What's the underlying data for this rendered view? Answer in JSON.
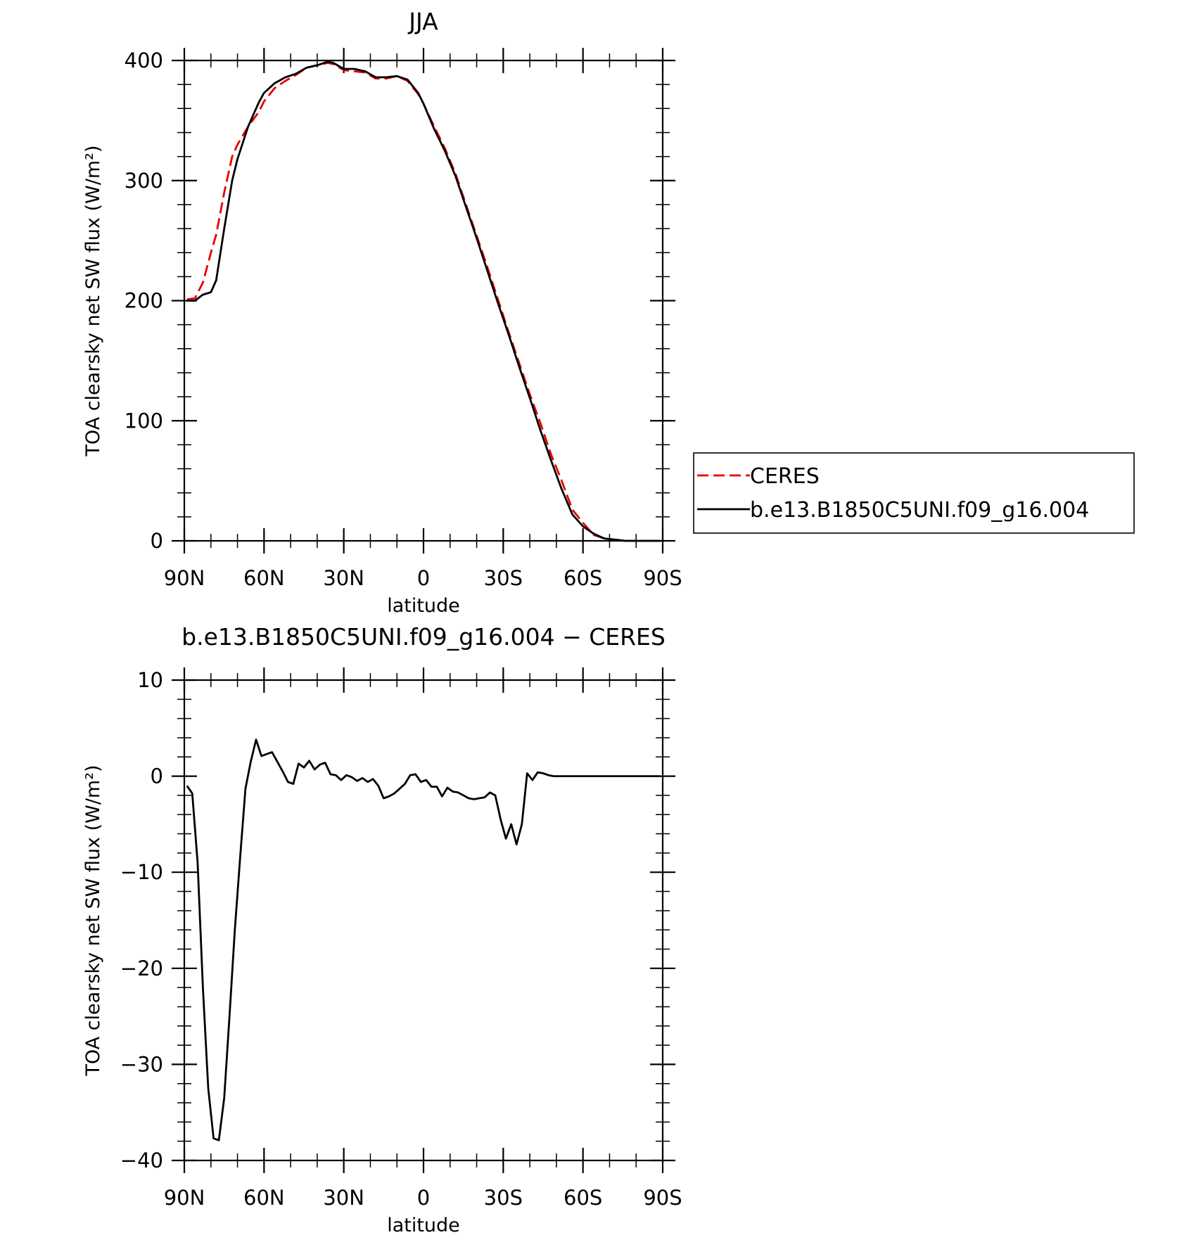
{
  "chart_data": [
    {
      "type": "line",
      "title": "JJA",
      "xlabel": "latitude",
      "ylabel": "TOA clearsky net SW flux (W/m²)",
      "x_tick_values": [
        90,
        60,
        30,
        0,
        -30,
        -60,
        -90
      ],
      "x_tick_labels": [
        "90N",
        "60N",
        "30N",
        "0",
        "30S",
        "60S",
        "90S"
      ],
      "xlim": [
        90,
        -90
      ],
      "y_tick_values": [
        0,
        100,
        200,
        300,
        400
      ],
      "y_tick_labels": [
        "0",
        "100",
        "200",
        "300",
        "400"
      ],
      "ylim": [
        0,
        400
      ],
      "grid": false,
      "legend_position": "right",
      "series": [
        {
          "name": "CERES",
          "color": "#e60000",
          "dash": "dashed",
          "x": [
            89,
            86,
            83,
            80,
            78,
            75,
            72,
            70,
            66,
            62,
            60,
            56,
            52,
            48,
            44,
            40,
            36,
            34,
            30,
            26,
            22,
            18,
            14,
            10,
            6,
            2,
            0,
            -4,
            -8,
            -12,
            -16,
            -20,
            -24,
            -28,
            -32,
            -36,
            -40,
            -44,
            -48,
            -52,
            -56,
            -60,
            -64,
            -68,
            -72,
            -76,
            -80,
            -84,
            -89
          ],
          "y": [
            201,
            202,
            215,
            240,
            255,
            290,
            320,
            330,
            345,
            357,
            366,
            377,
            383,
            388,
            394,
            396,
            398,
            397,
            392,
            391,
            390,
            385,
            385,
            387,
            383,
            372,
            364,
            345,
            327,
            306,
            280,
            254,
            228,
            201,
            174,
            148,
            122,
            98,
            72,
            50,
            26,
            15,
            5,
            2,
            1,
            0,
            0,
            0,
            0
          ]
        },
        {
          "name": "b.e13.B1850C5UNI.f09_g16.004",
          "color": "#000000",
          "dash": "solid",
          "x": [
            89,
            86,
            83,
            80,
            78,
            75,
            72,
            70,
            66,
            62,
            60,
            56,
            52,
            48,
            44,
            40,
            36,
            34,
            30,
            26,
            22,
            18,
            14,
            10,
            6,
            2,
            0,
            -4,
            -8,
            -12,
            -16,
            -20,
            -24,
            -28,
            -32,
            -36,
            -40,
            -44,
            -48,
            -52,
            -56,
            -60,
            -64,
            -68,
            -72,
            -76,
            -80,
            -84,
            -89
          ],
          "y": [
            200,
            200,
            205,
            207,
            217,
            260,
            300,
            318,
            345,
            365,
            373,
            381,
            386,
            389,
            394,
            396,
            399,
            398,
            393,
            393,
            391,
            386,
            386,
            387,
            384,
            373,
            364,
            343,
            325,
            304,
            278,
            252,
            225,
            198,
            172,
            145,
            119,
            92,
            67,
            43,
            22,
            12,
            6,
            2,
            1,
            0,
            0,
            0,
            0
          ]
        }
      ]
    },
    {
      "type": "line",
      "title": "b.e13.B1850C5UNI.f09_g16.004 − CERES",
      "xlabel": "latitude",
      "ylabel": "TOA clearsky net SW flux (W/m²)",
      "x_tick_values": [
        90,
        60,
        30,
        0,
        -30,
        -60,
        -90
      ],
      "x_tick_labels": [
        "90N",
        "60N",
        "30N",
        "0",
        "30S",
        "60S",
        "90S"
      ],
      "xlim": [
        90,
        -90
      ],
      "y_tick_values": [
        -40,
        -30,
        -20,
        -10,
        0,
        10
      ],
      "y_tick_labels": [
        "−40",
        "−30",
        "−20",
        "−10",
        "0",
        "10"
      ],
      "ylim": [
        -40,
        10
      ],
      "grid": false,
      "series": [
        {
          "name": "",
          "color": "#000000",
          "dash": "solid",
          "x": [
            89,
            87,
            85,
            83,
            81,
            79,
            77,
            75,
            73,
            71,
            69,
            67,
            65,
            63,
            61,
            59,
            57,
            55,
            53,
            51,
            49,
            47,
            45,
            43,
            41,
            39,
            37,
            35,
            33,
            31,
            29,
            27,
            25,
            23,
            21,
            19,
            17,
            15,
            13,
            11,
            9,
            7,
            5,
            3,
            1,
            -1,
            -3,
            -5,
            -7,
            -9,
            -11,
            -13,
            -15,
            -17,
            -19,
            -21,
            -23,
            -25,
            -27,
            -29,
            -31,
            -33,
            -35,
            -37,
            -39,
            -41,
            -43,
            -45,
            -47,
            -49,
            -51,
            -53,
            -55,
            -57,
            -59,
            -61,
            -63,
            -65,
            -67,
            -69,
            -71,
            -73,
            -75,
            -77,
            -79,
            -81,
            -83,
            -85,
            -87,
            -89
          ],
          "y": [
            -1.0,
            -1.8,
            -9.0,
            -22.0,
            -32.5,
            -37.7,
            -37.9,
            -33.5,
            -25.0,
            -16.0,
            -8.5,
            -1.3,
            1.5,
            3.8,
            2.1,
            2.3,
            2.5,
            1.5,
            0.5,
            -0.6,
            -0.8,
            1.3,
            0.9,
            1.6,
            0.7,
            1.2,
            1.4,
            0.2,
            0.1,
            -0.4,
            0.1,
            -0.1,
            -0.5,
            -0.2,
            -0.6,
            -0.3,
            -1.0,
            -2.3,
            -2.1,
            -1.8,
            -1.3,
            -0.8,
            0.1,
            0.2,
            -0.6,
            -0.4,
            -1.1,
            -1.1,
            -2.1,
            -1.2,
            -1.6,
            -1.7,
            -2.0,
            -2.3,
            -2.4,
            -2.3,
            -2.2,
            -1.7,
            -2.0,
            -4.5,
            -6.5,
            -5.0,
            -7.1,
            -5.0,
            0.3,
            -0.4,
            0.4,
            0.3,
            0.1,
            0.0,
            0.0,
            0.0,
            0.0,
            0.0,
            0.0,
            0.0,
            0.0,
            0.0,
            0.0,
            0.0,
            0.0,
            0.0,
            0.0,
            0.0,
            0.0,
            0.0,
            0.0,
            0.0,
            0.0,
            0.0
          ]
        }
      ]
    }
  ]
}
